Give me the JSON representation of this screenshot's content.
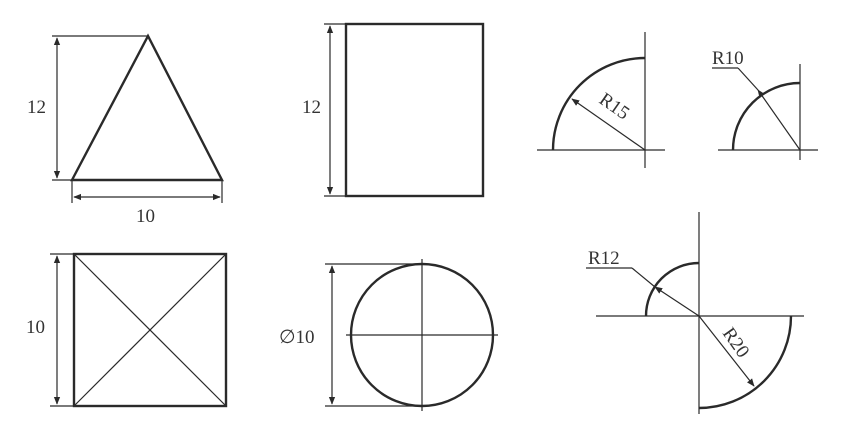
{
  "colors": {
    "line": "#2a2a2a",
    "text": "#333333",
    "background": "#ffffff"
  },
  "figures": {
    "triangle": {
      "height_label": "12",
      "width_label": "10"
    },
    "rectangle": {
      "height_label": "12"
    },
    "quarter_arc_large": {
      "radius_label": "R15"
    },
    "quarter_arc_small": {
      "radius_label": "R10"
    },
    "square": {
      "height_label": "10"
    },
    "circle": {
      "diameter_label": "∅10"
    },
    "double_arc": {
      "small_radius_label": "R12",
      "large_radius_label": "R20"
    }
  }
}
